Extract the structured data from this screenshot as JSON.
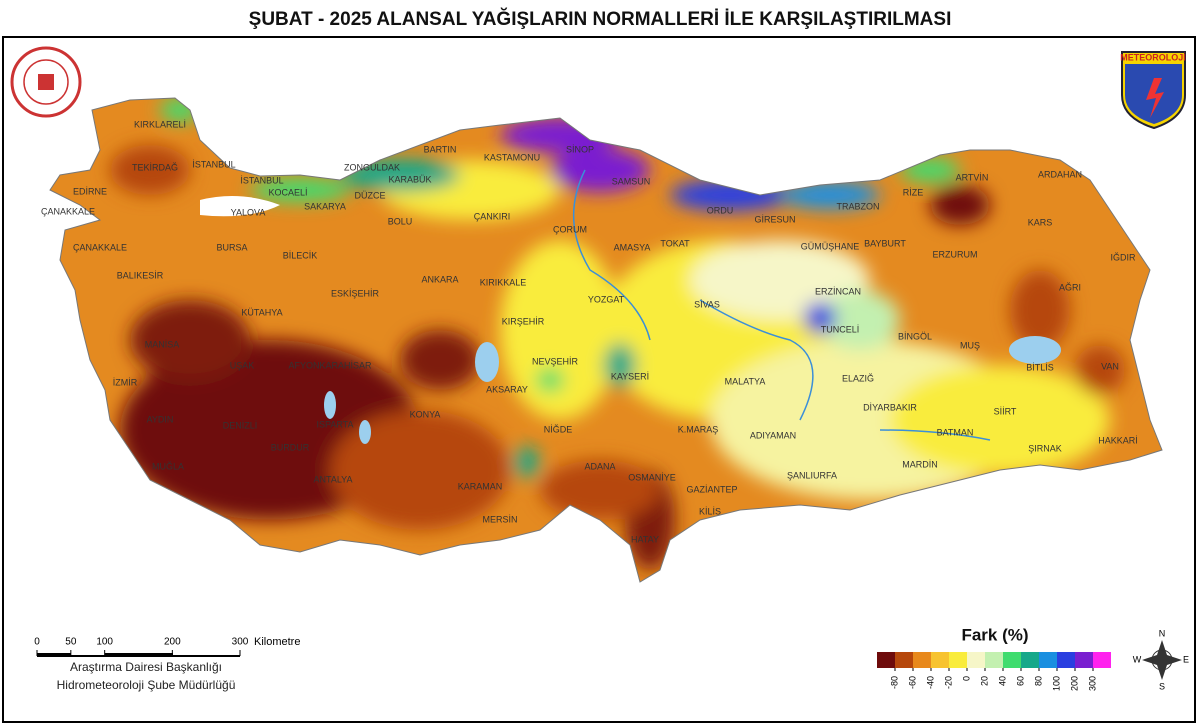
{
  "title": "ŞUBAT - 2025 ALANSAL YAĞIŞLARIN NORMALLERİ İLE KARŞILAŞTIRILMASI",
  "logo_text": "METEOROLOJİ",
  "cities": [
    "KIRKLARELİ",
    "TEKİRDAĞ",
    "İSTANBUL",
    "EDİRNE",
    "İSTANBUL",
    "ÇANAKKALE",
    "ÇANAKKALE",
    "YALOVA",
    "KOCAELİ",
    "SAKARYA",
    "DÜZCE",
    "ZONGULDAK",
    "BARTIN",
    "KARABÜK",
    "KASTAMONU",
    "SİNOP",
    "SAMSUN",
    "ORDU",
    "GİRESUN",
    "TRABZON",
    "RİZE",
    "ARTVİN",
    "ARDAHAN",
    "KARS",
    "IĞDIR",
    "AĞRI",
    "ERZURUM",
    "BAYBURT",
    "GÜMÜŞHANE",
    "ERZİNCAN",
    "TUNCELİ",
    "BİNGÖL",
    "MUŞ",
    "BİTLİS",
    "VAN",
    "SİİRT",
    "BATMAN",
    "ŞIRNAK",
    "HAKKARİ",
    "MARDİN",
    "DİYARBAKIR",
    "ELAZIĞ",
    "MALATYA",
    "ADIYAMAN",
    "ŞANLIURFA",
    "GAZİANTEP",
    "KİLİS",
    "K.MARAŞ",
    "OSMANİYE",
    "ADANA",
    "HATAY",
    "MERSİN",
    "KARAMAN",
    "NİĞDE",
    "AKSARAY",
    "NEVŞEHİR",
    "KAYSERİ",
    "SİVAS",
    "TOKAT",
    "AMASYA",
    "ÇORUM",
    "YOZGAT",
    "KIRŞEHİR",
    "KIRIKKALE",
    "ANKARA",
    "ÇANKIRI",
    "BOLU",
    "BİLECİK",
    "ESKİŞEHİR",
    "BURSA",
    "BALIKESİR",
    "KÜTAHYA",
    "MANİSA",
    "UŞAK",
    "AFYONKARAHİSAR",
    "İZMİR",
    "AYDIN",
    "DENİZLİ",
    "ISPARTA",
    "BURDUR",
    "MUĞLA",
    "ANTALYA",
    "KONYA"
  ],
  "legend": {
    "title": "Fark (%)",
    "colors": [
      "#6e0b0b",
      "#b6470b",
      "#e8891c",
      "#f7c330",
      "#f9ec3c",
      "#f6f6c8",
      "#c3f0b0",
      "#3fdc6e",
      "#16a88a",
      "#1a8fe0",
      "#2a3fe0",
      "#7a1fd0",
      "#ff22ee"
    ],
    "ticks": [
      -80,
      -60,
      -40,
      -20,
      0,
      20,
      40,
      60,
      80,
      100,
      200,
      300
    ]
  },
  "scale": {
    "ticks": [
      0,
      50,
      100,
      200,
      300
    ],
    "unit": "Kilometre"
  },
  "credits": [
    "Araştırma Dairesi Başkanlığı",
    "Hidrometeoroloji Şube Müdürlüğü"
  ],
  "compass": {
    "n": "N",
    "e": "E",
    "s": "S",
    "w": "W"
  }
}
